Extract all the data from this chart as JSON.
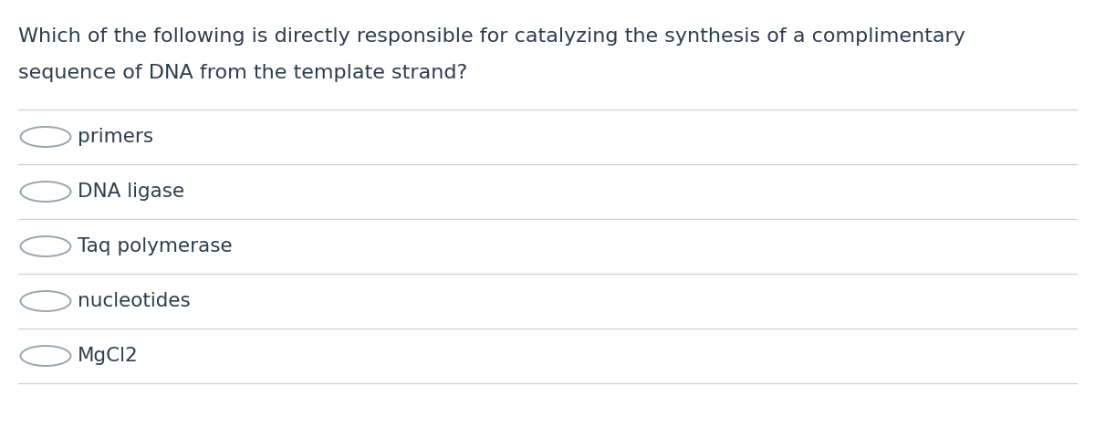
{
  "question_line1": "Which of the following is directly responsible for catalyzing the synthesis of a complimentary",
  "question_line2": "sequence of DNA from the template strand?",
  "options": [
    "primers",
    "DNA ligase",
    "Taq polymerase",
    "nucleotides",
    "MgCl2"
  ],
  "background_color": "#ffffff",
  "text_color": "#2e3d4f",
  "line_color": "#d0d0d0",
  "question_fontsize": 16,
  "option_fontsize": 15.5,
  "circle_color": "#9aa5b0",
  "fig_width": 12.0,
  "fig_height": 4.8
}
